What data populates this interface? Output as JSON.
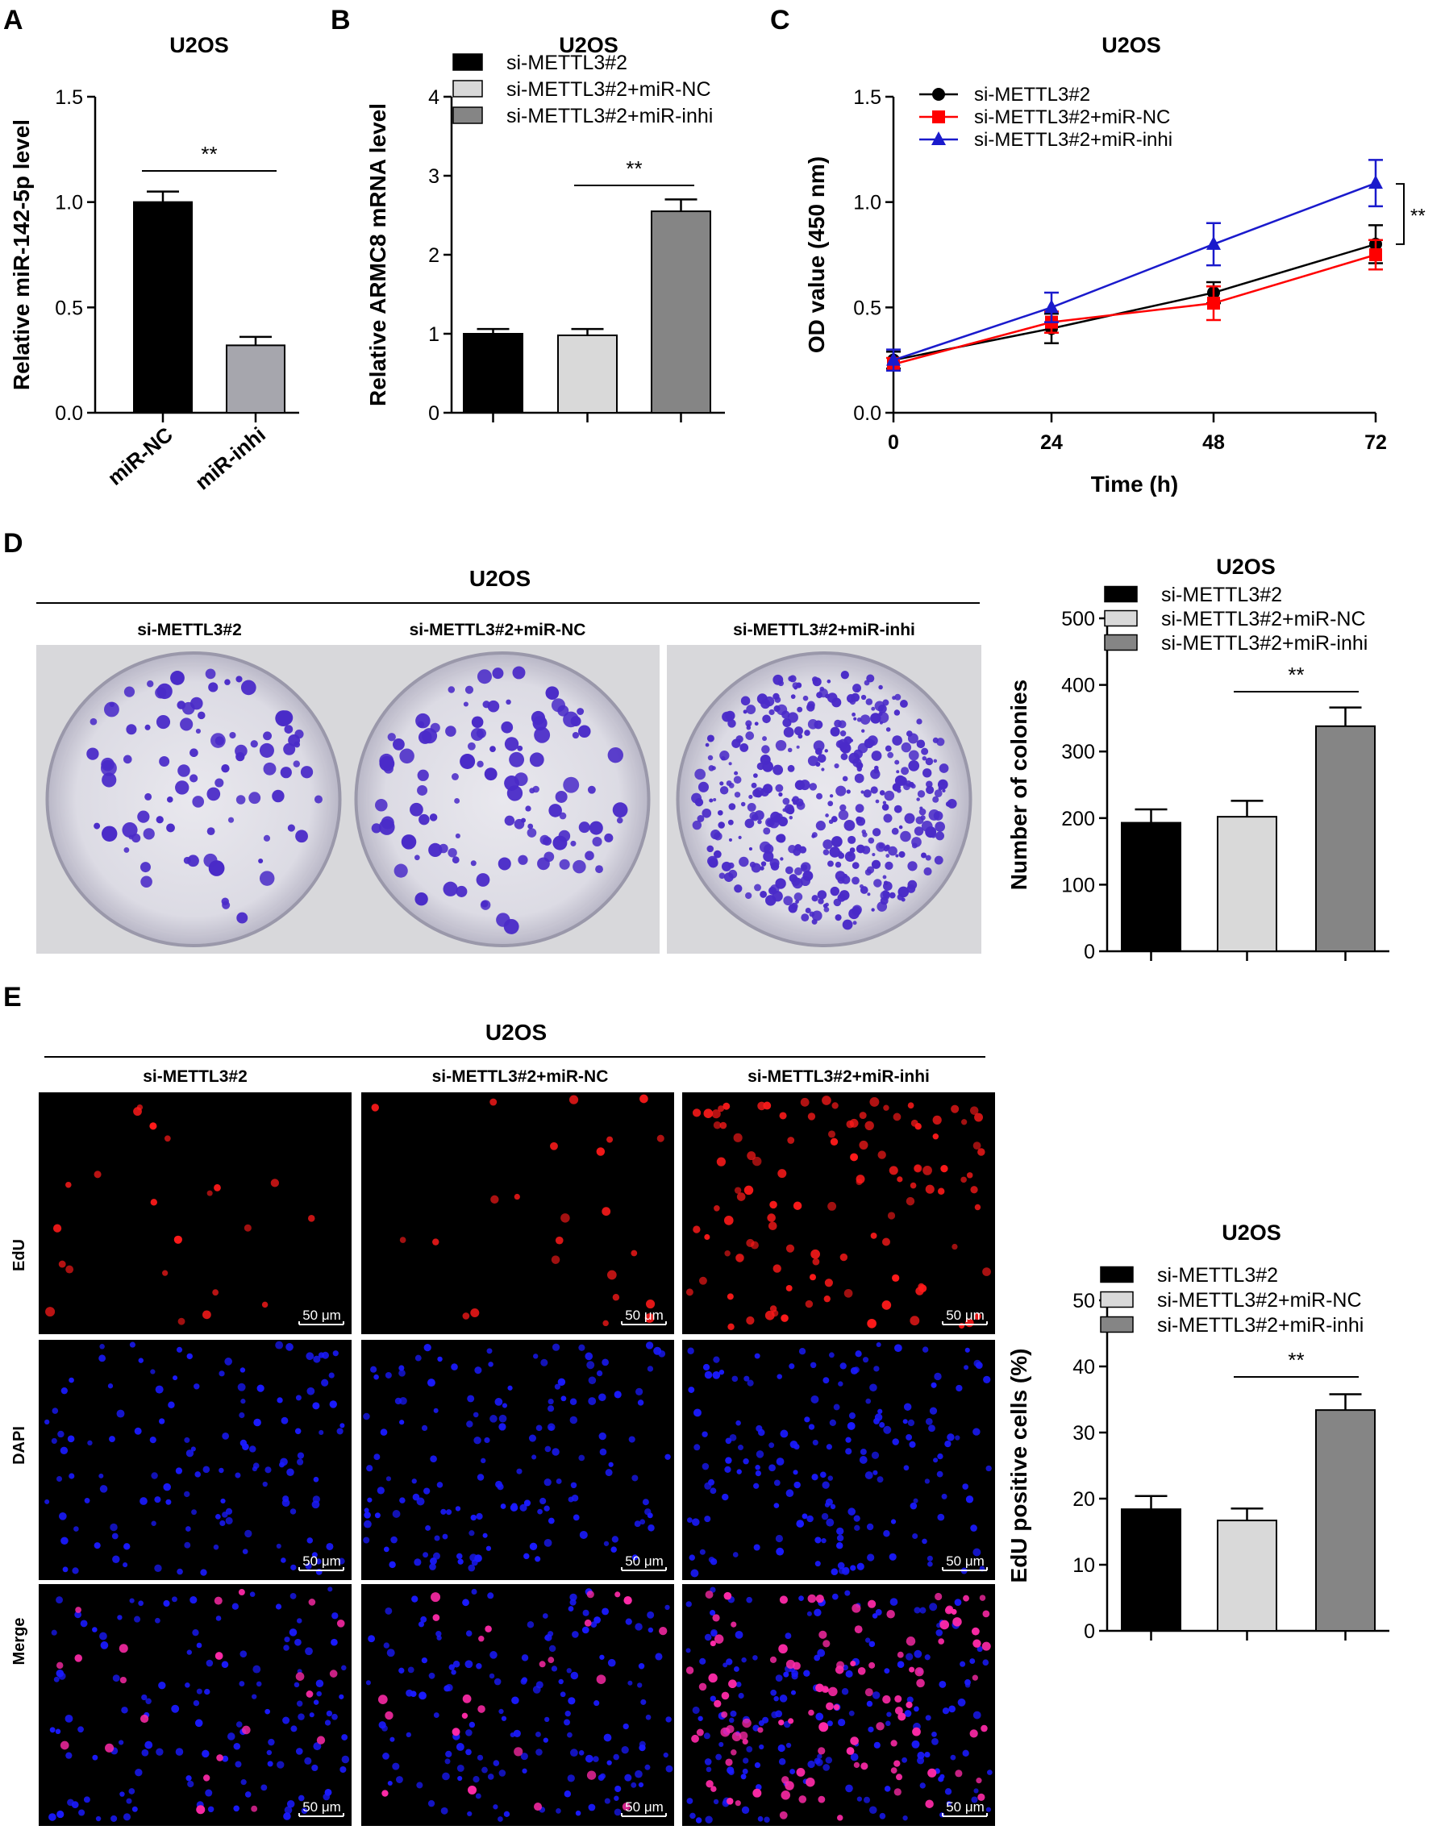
{
  "colors": {
    "black": "#000000",
    "light_gray": "#d9d9d9",
    "dark_gray": "#858585",
    "bar_gray_A": "#a6a6ad",
    "line_black": "#000000",
    "line_red": "#ff0000",
    "line_blue": "#1a1acc",
    "crystal_violet": "#4a2bc8",
    "edu_red": "#ff1a1a",
    "dapi_blue": "#1a1aff",
    "merge_magenta": "#ff2aa8"
  },
  "panels": {
    "A": {
      "letter": "A"
    },
    "B": {
      "letter": "B"
    },
    "C": {
      "letter": "C"
    },
    "D": {
      "letter": "D",
      "group_title": "U2OS",
      "image_labels": [
        "si-METTL3#2",
        "si-METTL3#2+miR-NC",
        "si-METTL3#2+miR-inhi"
      ],
      "colony_counts_icon": "colony-plate"
    },
    "E": {
      "letter": "E",
      "group_title": "U2OS",
      "image_labels": [
        "si-METTL3#2",
        "si-METTL3#2+miR-NC",
        "si-METTL3#2+miR-inhi"
      ],
      "row_labels": [
        "EdU",
        "DAPI",
        "Merge"
      ],
      "scale_bar": "50 μm"
    }
  },
  "chart_data": [
    {
      "id": "A",
      "type": "bar",
      "title": "U2OS",
      "categories": [
        "miR-NC",
        "miR-inhi"
      ],
      "values": [
        1.0,
        0.32
      ],
      "errors": [
        0.05,
        0.04
      ],
      "colors": [
        "#000000",
        "#a6a6ad"
      ],
      "ylabel": "Relative miR-142-5p level",
      "xlabel": "",
      "ylim": [
        0,
        1.5
      ],
      "yticks": [
        "0.0",
        "0.5",
        "1.0",
        "1.5"
      ],
      "significance": [
        {
          "from": 0,
          "to": 1,
          "label": "**"
        }
      ]
    },
    {
      "id": "B",
      "type": "bar",
      "title": "U2OS",
      "categories": [
        "si-METTL3#2",
        "si-METTL3#2+miR-NC",
        "si-METTL3#2+miR-inhi"
      ],
      "values": [
        1.0,
        0.98,
        2.55
      ],
      "errors": [
        0.06,
        0.08,
        0.15
      ],
      "colors": [
        "#000000",
        "#d9d9d9",
        "#858585"
      ],
      "legend": [
        "si-METTL3#2",
        "si-METTL3#2+miR-NC",
        "si-METTL3#2+miR-inhi"
      ],
      "ylabel": "Relative ARMC8 mRNA level",
      "xlabel": "",
      "ylim": [
        0,
        4
      ],
      "yticks": [
        "0",
        "1",
        "2",
        "3",
        "4"
      ],
      "significance": [
        {
          "from": 1,
          "to": 2,
          "label": "**"
        }
      ]
    },
    {
      "id": "C",
      "type": "line",
      "title": "U2OS",
      "x": [
        0,
        24,
        48,
        72
      ],
      "series": [
        {
          "name": "si-METTL3#2",
          "values": [
            0.25,
            0.4,
            0.57,
            0.8
          ],
          "errors": [
            0.04,
            0.07,
            0.05,
            0.09
          ],
          "color": "#000000",
          "marker": "circle"
        },
        {
          "name": "si-METTL3#2+miR-NC",
          "values": [
            0.23,
            0.43,
            0.52,
            0.75
          ],
          "errors": [
            0.03,
            0.05,
            0.08,
            0.07
          ],
          "color": "#ff0000",
          "marker": "square"
        },
        {
          "name": "si-METTL3#2+miR-inhi",
          "values": [
            0.25,
            0.5,
            0.8,
            1.09
          ],
          "errors": [
            0.05,
            0.07,
            0.1,
            0.11
          ],
          "color": "#1a1acc",
          "marker": "triangle"
        }
      ],
      "xlabel": "Time (h)",
      "ylabel": "OD value (450 nm)",
      "xticks": [
        "0",
        "24",
        "48",
        "72"
      ],
      "ylim": [
        0,
        1.5
      ],
      "yticks": [
        "0.0",
        "0.5",
        "1.0",
        "1.5"
      ],
      "significance_label": "**"
    },
    {
      "id": "D",
      "type": "bar",
      "title": "U2OS",
      "categories": [
        "si-METTL3#2",
        "si-METTL3#2+miR-NC",
        "si-METTL3#2+miR-inhi"
      ],
      "values": [
        193,
        202,
        338
      ],
      "errors": [
        20,
        24,
        28
      ],
      "colors": [
        "#000000",
        "#d9d9d9",
        "#858585"
      ],
      "legend": [
        "si-METTL3#2",
        "si-METTL3#2+miR-NC",
        "si-METTL3#2+miR-inhi"
      ],
      "ylabel": "Number of colonies",
      "xlabel": "",
      "ylim": [
        0,
        500
      ],
      "yticks": [
        "0",
        "100",
        "200",
        "300",
        "400",
        "500"
      ],
      "significance": [
        {
          "from": 1,
          "to": 2,
          "label": "**"
        }
      ]
    },
    {
      "id": "E",
      "type": "bar",
      "title": "U2OS",
      "categories": [
        "si-METTL3#2",
        "si-METTL3#2+miR-NC",
        "si-METTL3#2+miR-inhi"
      ],
      "values": [
        18.4,
        16.7,
        33.4
      ],
      "errors": [
        2.0,
        1.8,
        2.4
      ],
      "colors": [
        "#000000",
        "#d9d9d9",
        "#858585"
      ],
      "legend": [
        "si-METTL3#2",
        "si-METTL3#2+miR-NC",
        "si-METTL3#2+miR-inhi"
      ],
      "ylabel": "EdU positive cells (%)",
      "xlabel": "",
      "ylim": [
        0,
        50
      ],
      "yticks": [
        "0",
        "10",
        "20",
        "30",
        "40",
        "50"
      ],
      "significance": [
        {
          "from": 1,
          "to": 2,
          "label": "**"
        }
      ]
    }
  ]
}
